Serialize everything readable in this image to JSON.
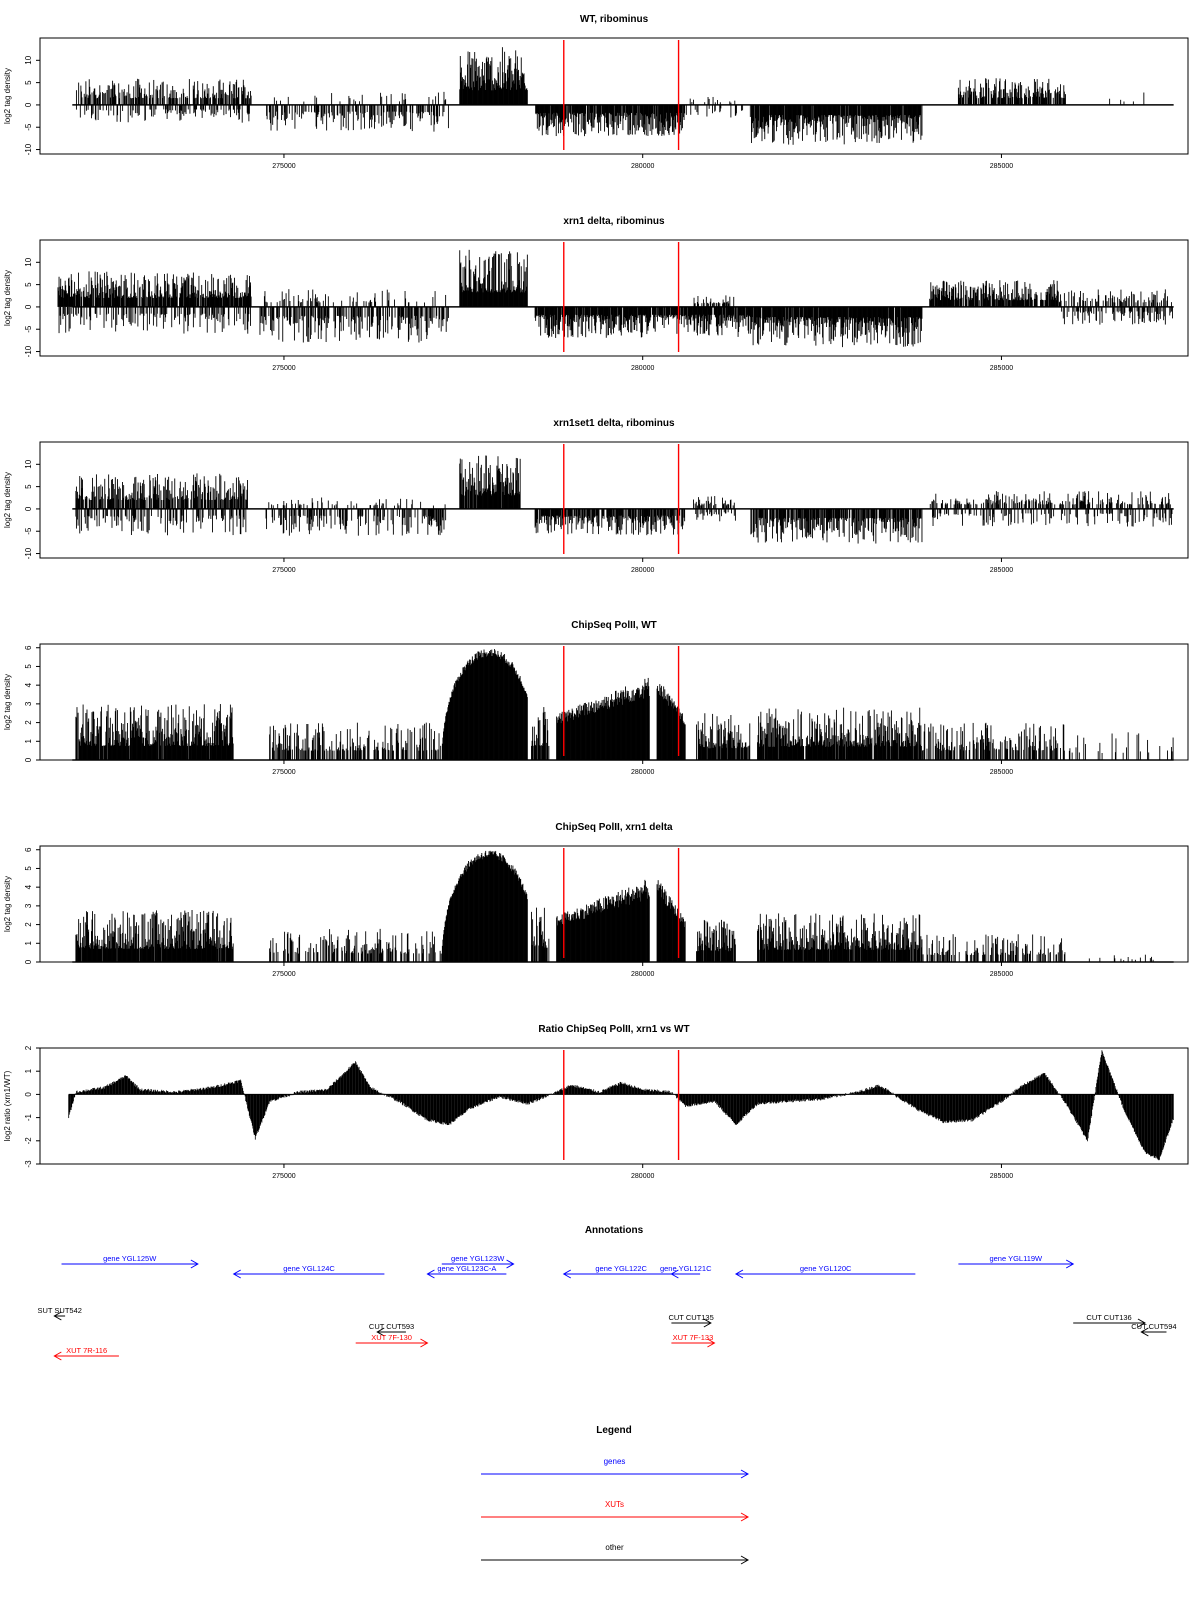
{
  "chart_data": [
    {
      "type": "bar",
      "title": "WT, ribominus",
      "ylabel": "log2 tag density",
      "ylim": [
        -11,
        15
      ],
      "yticks": [
        -10,
        -5,
        0,
        5,
        10
      ],
      "xlim": [
        271600,
        287600
      ],
      "xticks": [
        275000,
        280000,
        285000
      ],
      "xtick_labels": [
        "275000",
        "280000",
        "285000"
      ],
      "vlines": [
        278900,
        280500
      ],
      "vline_color": "#ff0000",
      "segments": [
        {
          "x0": 272100,
          "x1": 274550,
          "dir": "pos",
          "max": 6,
          "fill": 0.6
        },
        {
          "x0": 272100,
          "x1": 274550,
          "dir": "neg",
          "max": 4,
          "fill": 0.3
        },
        {
          "x0": 274750,
          "x1": 277300,
          "dir": "neg",
          "max": 6,
          "fill": 0.45
        },
        {
          "x0": 274750,
          "x1": 277300,
          "dir": "pos",
          "max": 3,
          "fill": 0.08
        },
        {
          "x0": 277450,
          "x1": 278400,
          "dir": "pos",
          "max": 13,
          "fill": 1.0
        },
        {
          "x0": 278500,
          "x1": 280600,
          "dir": "neg",
          "max": 7,
          "fill": 0.9
        },
        {
          "x0": 280600,
          "x1": 281400,
          "dir": "neg",
          "max": 3,
          "fill": 0.25
        },
        {
          "x0": 280600,
          "x1": 281400,
          "dir": "pos",
          "max": 2,
          "fill": 0.12
        },
        {
          "x0": 281500,
          "x1": 283900,
          "dir": "neg",
          "max": 9,
          "fill": 0.95
        },
        {
          "x0": 284400,
          "x1": 285900,
          "dir": "pos",
          "max": 6,
          "fill": 0.8
        },
        {
          "x0": 286500,
          "x1": 287000,
          "dir": "pos",
          "max": 3,
          "fill": 0.05
        }
      ]
    },
    {
      "type": "bar",
      "title": "xrn1 delta, ribominus",
      "ylabel": "log2 tag density",
      "ylim": [
        -11,
        15
      ],
      "yticks": [
        -10,
        -5,
        0,
        5,
        10
      ],
      "xlim": [
        271600,
        287600
      ],
      "xticks": [
        275000,
        280000,
        285000
      ],
      "xtick_labels": [
        "275000",
        "280000",
        "285000"
      ],
      "vlines": [
        278900,
        280500
      ],
      "vline_color": "#ff0000",
      "segments": [
        {
          "x0": 271850,
          "x1": 274550,
          "dir": "pos",
          "max": 8,
          "fill": 0.85
        },
        {
          "x0": 271850,
          "x1": 274550,
          "dir": "neg",
          "max": 6,
          "fill": 0.4
        },
        {
          "x0": 274650,
          "x1": 277300,
          "dir": "neg",
          "max": 8,
          "fill": 0.55
        },
        {
          "x0": 274650,
          "x1": 277300,
          "dir": "pos",
          "max": 4,
          "fill": 0.2
        },
        {
          "x0": 277450,
          "x1": 278400,
          "dir": "pos",
          "max": 13,
          "fill": 1.0
        },
        {
          "x0": 278500,
          "x1": 281500,
          "dir": "neg",
          "max": 7,
          "fill": 0.9
        },
        {
          "x0": 280700,
          "x1": 281300,
          "dir": "pos",
          "max": 3,
          "fill": 0.4
        },
        {
          "x0": 281500,
          "x1": 283900,
          "dir": "neg",
          "max": 9,
          "fill": 0.95
        },
        {
          "x0": 284000,
          "x1": 285800,
          "dir": "pos",
          "max": 6,
          "fill": 0.85
        },
        {
          "x0": 285800,
          "x1": 287400,
          "dir": "pos",
          "max": 4,
          "fill": 0.4
        },
        {
          "x0": 285800,
          "x1": 287400,
          "dir": "neg",
          "max": 4,
          "fill": 0.35
        }
      ]
    },
    {
      "type": "bar",
      "title": "xrn1set1 delta, ribominus",
      "ylabel": "log2 tag density",
      "ylim": [
        -11,
        15
      ],
      "yticks": [
        -10,
        -5,
        0,
        5,
        10
      ],
      "xlim": [
        271600,
        287600
      ],
      "xticks": [
        275000,
        280000,
        285000
      ],
      "xtick_labels": [
        "275000",
        "280000",
        "285000"
      ],
      "vlines": [
        278900,
        280500
      ],
      "vline_color": "#ff0000",
      "segments": [
        {
          "x0": 272100,
          "x1": 274500,
          "dir": "pos",
          "max": 8,
          "fill": 0.7
        },
        {
          "x0": 272100,
          "x1": 274500,
          "dir": "neg",
          "max": 6,
          "fill": 0.35
        },
        {
          "x0": 274750,
          "x1": 277300,
          "dir": "neg",
          "max": 6,
          "fill": 0.4
        },
        {
          "x0": 274750,
          "x1": 277300,
          "dir": "pos",
          "max": 3,
          "fill": 0.15
        },
        {
          "x0": 277450,
          "x1": 278300,
          "dir": "pos",
          "max": 12,
          "fill": 0.95
        },
        {
          "x0": 278500,
          "x1": 280600,
          "dir": "neg",
          "max": 6,
          "fill": 0.8
        },
        {
          "x0": 280700,
          "x1": 281300,
          "dir": "pos",
          "max": 3,
          "fill": 0.4
        },
        {
          "x0": 280700,
          "x1": 281300,
          "dir": "neg",
          "max": 3,
          "fill": 0.3
        },
        {
          "x0": 281500,
          "x1": 283900,
          "dir": "neg",
          "max": 8,
          "fill": 0.75
        },
        {
          "x0": 284000,
          "x1": 287400,
          "dir": "pos",
          "max": 4,
          "fill": 0.45
        },
        {
          "x0": 284000,
          "x1": 287400,
          "dir": "neg",
          "max": 4,
          "fill": 0.3
        }
      ]
    },
    {
      "type": "bar",
      "title": "ChipSeq PolII, WT",
      "ylabel": "log2 tag density",
      "ylim": [
        0,
        6.2
      ],
      "yticks": [
        0,
        1,
        2,
        3,
        4,
        5,
        6
      ],
      "xlim": [
        271600,
        287600
      ],
      "xticks": [
        275000,
        280000,
        285000
      ],
      "xtick_labels": [
        "275000",
        "280000",
        "285000"
      ],
      "vlines": [
        278900,
        280500
      ],
      "vline_color": "#ff0000",
      "segments": [
        {
          "x0": 272100,
          "x1": 274300,
          "dir": "pos",
          "max": 3,
          "fill": 0.95
        },
        {
          "x0": 274800,
          "x1": 277200,
          "dir": "pos",
          "max": 2,
          "fill": 0.55
        },
        {
          "x0": 277200,
          "x1": 278400,
          "dir": "pos",
          "max": 6,
          "fill": 1.0,
          "shape": "dome"
        },
        {
          "x0": 278450,
          "x1": 278700,
          "dir": "pos",
          "max": 3,
          "fill": 0.9
        },
        {
          "x0": 278800,
          "x1": 280100,
          "dir": "pos",
          "max": 4.5,
          "fill": 1.0,
          "shape": "ramp"
        },
        {
          "x0": 280200,
          "x1": 280600,
          "dir": "pos",
          "max": 4.5,
          "fill": 1.0,
          "shape": "ramp-down"
        },
        {
          "x0": 280750,
          "x1": 281500,
          "dir": "pos",
          "max": 2.5,
          "fill": 0.9
        },
        {
          "x0": 281600,
          "x1": 283900,
          "dir": "pos",
          "max": 2.8,
          "fill": 0.95
        },
        {
          "x0": 283900,
          "x1": 285900,
          "dir": "pos",
          "max": 2,
          "fill": 0.5
        },
        {
          "x0": 285900,
          "x1": 287400,
          "dir": "pos",
          "max": 1.5,
          "fill": 0.12
        }
      ]
    },
    {
      "type": "bar",
      "title": "ChipSeq PolII, xrn1 delta",
      "ylabel": "log2 tag density",
      "ylim": [
        0,
        6.2
      ],
      "yticks": [
        0,
        1,
        2,
        3,
        4,
        5,
        6
      ],
      "xlim": [
        271600,
        287600
      ],
      "xticks": [
        275000,
        280000,
        285000
      ],
      "xtick_labels": [
        "275000",
        "280000",
        "285000"
      ],
      "vlines": [
        278900,
        280500
      ],
      "vline_color": "#ff0000",
      "segments": [
        {
          "x0": 272100,
          "x1": 274300,
          "dir": "pos",
          "max": 2.8,
          "fill": 0.95
        },
        {
          "x0": 274800,
          "x1": 277200,
          "dir": "pos",
          "max": 1.8,
          "fill": 0.4
        },
        {
          "x0": 277200,
          "x1": 278400,
          "dir": "pos",
          "max": 6,
          "fill": 1.0,
          "shape": "dome"
        },
        {
          "x0": 278450,
          "x1": 278700,
          "dir": "pos",
          "max": 3,
          "fill": 0.9
        },
        {
          "x0": 278800,
          "x1": 280100,
          "dir": "pos",
          "max": 4.5,
          "fill": 1.0,
          "shape": "ramp"
        },
        {
          "x0": 280200,
          "x1": 280600,
          "dir": "pos",
          "max": 4.5,
          "fill": 1.0,
          "shape": "ramp-down"
        },
        {
          "x0": 280750,
          "x1": 281300,
          "dir": "pos",
          "max": 2.3,
          "fill": 0.9
        },
        {
          "x0": 281600,
          "x1": 283900,
          "dir": "pos",
          "max": 2.6,
          "fill": 0.95
        },
        {
          "x0": 283900,
          "x1": 285900,
          "dir": "pos",
          "max": 1.5,
          "fill": 0.4
        },
        {
          "x0": 285900,
          "x1": 287400,
          "dir": "pos",
          "max": 0.4,
          "fill": 0.05
        }
      ]
    },
    {
      "type": "area",
      "title": "Ratio ChipSeq PolII, xrn1 vs WT",
      "ylabel": "log2 ratio (xrn1/WT)",
      "ylim": [
        -3,
        2
      ],
      "yticks": [
        -3,
        -2,
        -1,
        0,
        1,
        2
      ],
      "xlim": [
        271600,
        287600
      ],
      "xticks": [
        275000,
        280000,
        285000
      ],
      "xtick_labels": [
        "275000",
        "280000",
        "285000"
      ],
      "vlines": [
        278900,
        280500
      ],
      "vline_color": "#ff0000",
      "profile": [
        [
          272000,
          -1.0
        ],
        [
          272100,
          0.1
        ],
        [
          272500,
          0.3
        ],
        [
          272800,
          0.8
        ],
        [
          273000,
          0.2
        ],
        [
          273500,
          0.1
        ],
        [
          274000,
          0.3
        ],
        [
          274400,
          0.6
        ],
        [
          274600,
          -1.9
        ],
        [
          274800,
          -0.3
        ],
        [
          275200,
          0.1
        ],
        [
          275600,
          0.2
        ],
        [
          276000,
          1.4
        ],
        [
          276200,
          0.3
        ],
        [
          276600,
          -0.3
        ],
        [
          277000,
          -1.1
        ],
        [
          277300,
          -1.3
        ],
        [
          277600,
          -0.6
        ],
        [
          278000,
          -0.1
        ],
        [
          278400,
          -0.4
        ],
        [
          278800,
          0.1
        ],
        [
          279000,
          0.4
        ],
        [
          279400,
          0.1
        ],
        [
          279700,
          0.5
        ],
        [
          280000,
          0.2
        ],
        [
          280400,
          0.1
        ],
        [
          280600,
          -0.5
        ],
        [
          281000,
          -0.3
        ],
        [
          281300,
          -1.3
        ],
        [
          281600,
          -0.4
        ],
        [
          282000,
          -0.3
        ],
        [
          282500,
          -0.2
        ],
        [
          283000,
          0.1
        ],
        [
          283300,
          0.4
        ],
        [
          283800,
          -0.6
        ],
        [
          284200,
          -1.2
        ],
        [
          284600,
          -1.1
        ],
        [
          285000,
          -0.3
        ],
        [
          285300,
          0.4
        ],
        [
          285600,
          0.9
        ],
        [
          285900,
          -0.4
        ],
        [
          286200,
          -2.0
        ],
        [
          286400,
          1.9
        ],
        [
          286700,
          -0.6
        ],
        [
          287000,
          -2.5
        ],
        [
          287200,
          -2.8
        ],
        [
          287400,
          -1.0
        ]
      ]
    }
  ],
  "annotations": {
    "title": "Annotations",
    "xlim": [
      271600,
      287600
    ],
    "items": [
      {
        "label": "gene YGL125W",
        "x0": 271900,
        "x1": 273800,
        "dir": "right",
        "color": "#0000ff",
        "row": 0
      },
      {
        "label": "gene YGL124C",
        "x0": 274300,
        "x1": 276400,
        "dir": "left",
        "color": "#0000ff",
        "row": 1
      },
      {
        "label": "gene YGL123W",
        "x0": 277200,
        "x1": 278200,
        "dir": "right",
        "color": "#0000ff",
        "row": 0
      },
      {
        "label": "gene YGL123C-A",
        "x0": 277000,
        "x1": 278100,
        "dir": "left",
        "color": "#0000ff",
        "row": 1
      },
      {
        "label": "gene YGL122C",
        "x0": 278900,
        "x1": 280500,
        "dir": "left",
        "color": "#0000ff",
        "row": 1
      },
      {
        "label": "gene YGL121C",
        "x0": 280400,
        "x1": 280800,
        "dir": "left",
        "color": "#0000ff",
        "row": 1
      },
      {
        "label": "gene YGL120C",
        "x0": 281300,
        "x1": 283800,
        "dir": "left",
        "color": "#0000ff",
        "row": 1
      },
      {
        "label": "gene YGL119W",
        "x0": 284400,
        "x1": 286000,
        "dir": "right",
        "color": "#0000ff",
        "row": 0
      },
      {
        "label": "SUT SUT542",
        "x0": 271800,
        "x1": 271950,
        "dir": "left",
        "color": "#000000",
        "row": 3
      },
      {
        "label": "CUT CUT593",
        "x0": 276300,
        "x1": 276700,
        "dir": "left",
        "color": "#000000",
        "row": 4
      },
      {
        "label": "CUT CUT135",
        "x0": 280400,
        "x1": 280950,
        "dir": "right",
        "color": "#000000",
        "row": 5
      },
      {
        "label": "CUT CUT136",
        "x0": 286000,
        "x1": 287000,
        "dir": "right",
        "color": "#000000",
        "row": 5
      },
      {
        "label": "CUT CUT594",
        "x0": 286950,
        "x1": 287300,
        "dir": "left",
        "color": "#000000",
        "row": 4
      },
      {
        "label": "XUT 7R-116",
        "x0": 271800,
        "x1": 272700,
        "dir": "left",
        "color": "#ff0000",
        "row": 6
      },
      {
        "label": "XUT 7F-130",
        "x0": 276000,
        "x1": 277000,
        "dir": "right",
        "color": "#ff0000",
        "row": 7
      },
      {
        "label": "XUT 7F-133",
        "x0": 280400,
        "x1": 281000,
        "dir": "right",
        "color": "#ff0000",
        "row": 7
      }
    ]
  },
  "legend": {
    "title": "Legend",
    "entries": [
      {
        "label": "genes",
        "color": "#0000ff"
      },
      {
        "label": "XUTs",
        "color": "#ff0000"
      },
      {
        "label": "other",
        "color": "#000000"
      }
    ]
  }
}
